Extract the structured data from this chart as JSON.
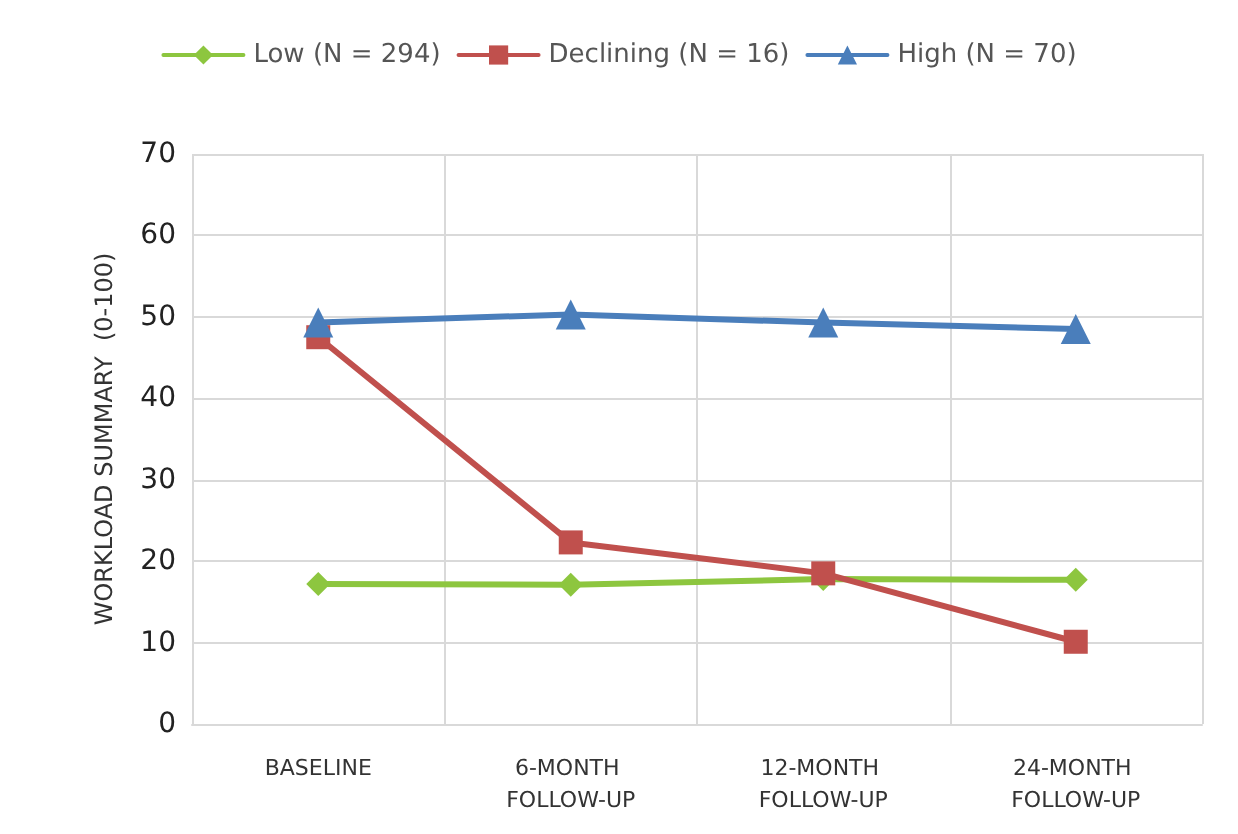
{
  "chart_data": {
    "type": "line",
    "ylabel": "WORKLOAD SUMMARY  (0-100)",
    "categories": [
      "BASELINE",
      "6-MONTH FOLLOW-UP",
      "12-MONTH FOLLOW-UP",
      "24-MONTH FOLLOW-UP"
    ],
    "series": [
      {
        "name": "Low (N = 294)",
        "color": "#8dc63f",
        "marker": "diamond",
        "values": [
          17.2,
          17.1,
          17.8,
          17.7
        ]
      },
      {
        "name": "Declining (N = 16)",
        "color": "#c0504d",
        "marker": "square",
        "values": [
          47.5,
          22.3,
          18.5,
          10.1
        ]
      },
      {
        "name": "High (N = 70)",
        "color": "#4a7ebb",
        "marker": "triangle",
        "values": [
          49.3,
          50.3,
          49.3,
          48.5
        ]
      }
    ],
    "ylim": [
      0,
      70
    ],
    "yticks": [
      0,
      10,
      20,
      30,
      40,
      50,
      60,
      70
    ],
    "grid": true,
    "legend": "top",
    "line_style": "solid"
  }
}
